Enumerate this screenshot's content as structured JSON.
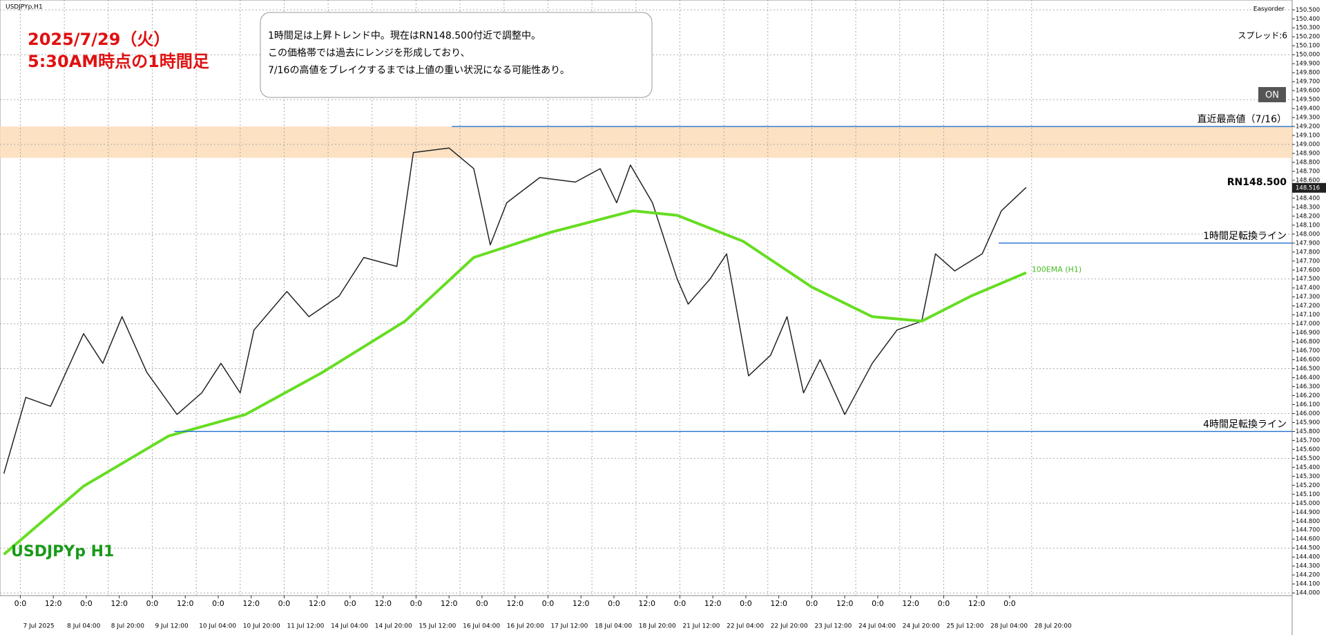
{
  "chart_data": {
    "type": "line",
    "symbol_caption": "USDJPYp,H1",
    "broker_tag": "Easyorder",
    "spread": "スプレッド:6",
    "button": "ON",
    "title_lines": [
      "2025/7/29（火）",
      "5:30AM時点の1時間足"
    ],
    "note_lines": [
      "1時間足は上昇トレンド中。現在はRN148.500付近で調整中。",
      "この価格帯では過去にレンジを形成しており、",
      "7/16の高値をブレイクするまでは上値の重い状況になる可能性あり。"
    ],
    "symbol_label": "USDJPYp H1",
    "last_price": 148.516,
    "xlim": [
      -7.4,
      462.8
    ],
    "ylim": [
      143.97,
      150.61
    ],
    "grid": true,
    "zone": [
      148.85,
      149.2
    ],
    "zone_color": "#fcdcb8",
    "levels": [
      {
        "label": "直近最高値（7/16）",
        "value": 149.2,
        "from": 157
      },
      {
        "label": "RN148.500",
        "value": 148.5,
        "from": 462.8
      },
      {
        "label": "1時間足転換ライン",
        "value": 147.9,
        "from": 356
      },
      {
        "label": "4時間足転換ライン",
        "value": 145.8,
        "from": 56
      }
    ],
    "series": [
      {
        "name": "USDJPYp",
        "color": "#222222",
        "x": [
          -6,
          2,
          11,
          23,
          30,
          37,
          46,
          57,
          66,
          73,
          80,
          85,
          97,
          105,
          116,
          125,
          137,
          143,
          156,
          165,
          171,
          177,
          189,
          202,
          211,
          217,
          222,
          230,
          239,
          243,
          251,
          257,
          265,
          273,
          279,
          285,
          291,
          300,
          310,
          319,
          328,
          333,
          340,
          350,
          357,
          366
        ],
        "values": [
          145.33,
          146.18,
          146.08,
          146.89,
          146.56,
          147.08,
          146.46,
          145.99,
          146.23,
          146.56,
          146.23,
          146.93,
          147.36,
          147.08,
          147.31,
          147.74,
          147.64,
          148.91,
          148.96,
          148.73,
          147.88,
          148.35,
          148.63,
          148.58,
          148.73,
          148.35,
          148.77,
          148.35,
          147.5,
          147.22,
          147.5,
          147.78,
          146.42,
          146.65,
          147.08,
          146.23,
          146.6,
          145.99,
          146.56,
          146.93,
          147.03,
          147.78,
          147.59,
          147.78,
          148.26,
          148.52
        ]
      },
      {
        "name": "100EMA (H1)",
        "color": "#66dd22",
        "x": [
          -6,
          23,
          54,
          82,
          110,
          140,
          165,
          193,
          223,
          239,
          263,
          288,
          310,
          328,
          346,
          366
        ],
        "values": [
          144.43,
          145.19,
          145.75,
          145.99,
          146.46,
          147.03,
          147.74,
          148.02,
          148.26,
          148.21,
          147.92,
          147.41,
          147.08,
          147.03,
          147.31,
          147.57
        ]
      }
    ],
    "yticks": [
      {
        "value": 144.0,
        "label": "144.000"
      },
      {
        "value": 144.1,
        "label": "144.100"
      },
      {
        "value": 144.2,
        "label": "144.200"
      },
      {
        "value": 144.3,
        "label": "144.300"
      },
      {
        "value": 144.4,
        "label": "144.400"
      },
      {
        "value": 144.5,
        "label": "144.500"
      },
      {
        "value": 144.6,
        "label": "144.600"
      },
      {
        "value": 144.7,
        "label": "144.700"
      },
      {
        "value": 144.8,
        "label": "144.800"
      },
      {
        "value": 144.9,
        "label": "144.900"
      },
      {
        "value": 145.0,
        "label": "145.000"
      },
      {
        "value": 145.1,
        "label": "145.100"
      },
      {
        "value": 145.2,
        "label": "145.200"
      },
      {
        "value": 145.3,
        "label": "145.300"
      },
      {
        "value": 145.4,
        "label": "145.400"
      },
      {
        "value": 145.5,
        "label": "145.500"
      },
      {
        "value": 145.6,
        "label": "145.600"
      },
      {
        "value": 145.7,
        "label": "145.700"
      },
      {
        "value": 145.8,
        "label": "145.800"
      },
      {
        "value": 145.9,
        "label": "145.900"
      },
      {
        "value": 146.0,
        "label": "146.000"
      },
      {
        "value": 146.1,
        "label": "146.100"
      },
      {
        "value": 146.2,
        "label": "146.200"
      },
      {
        "value": 146.3,
        "label": "146.300"
      },
      {
        "value": 146.4,
        "label": "146.400"
      },
      {
        "value": 146.5,
        "label": "146.500"
      },
      {
        "value": 146.6,
        "label": "146.600"
      },
      {
        "value": 146.7,
        "label": "146.700"
      },
      {
        "value": 146.8,
        "label": "146.800"
      },
      {
        "value": 146.9,
        "label": "146.900"
      },
      {
        "value": 147.0,
        "label": "147.000"
      },
      {
        "value": 147.1,
        "label": "147.100"
      },
      {
        "value": 147.2,
        "label": "147.200"
      },
      {
        "value": 147.3,
        "label": "147.300"
      },
      {
        "value": 147.4,
        "label": "147.400"
      },
      {
        "value": 147.5,
        "label": "147.500"
      },
      {
        "value": 147.6,
        "label": "147.600"
      },
      {
        "value": 147.7,
        "label": "147.700"
      },
      {
        "value": 147.8,
        "label": "147.800"
      },
      {
        "value": 147.9,
        "label": "147.900"
      },
      {
        "value": 148.0,
        "label": "148.000"
      },
      {
        "value": 148.1,
        "label": "148.100"
      },
      {
        "value": 148.2,
        "label": "148.200"
      },
      {
        "value": 148.3,
        "label": "148.300"
      },
      {
        "value": 148.4,
        "label": "148.400"
      },
      {
        "value": 148.6,
        "label": "148.600"
      },
      {
        "value": 148.7,
        "label": "148.700"
      },
      {
        "value": 148.8,
        "label": "148.800"
      },
      {
        "value": 148.9,
        "label": "148.900"
      },
      {
        "value": 149.0,
        "label": "149.000"
      },
      {
        "value": 149.1,
        "label": "149.100"
      },
      {
        "value": 149.2,
        "label": "149.200"
      },
      {
        "value": 149.3,
        "label": "149.300"
      },
      {
        "value": 149.4,
        "label": "149.400"
      },
      {
        "value": 149.5,
        "label": "149.500"
      },
      {
        "value": 149.6,
        "label": "149.600"
      },
      {
        "value": 149.7,
        "label": "149.700"
      },
      {
        "value": 149.8,
        "label": "149.800"
      },
      {
        "value": 149.9,
        "label": "149.900"
      },
      {
        "value": 150.0,
        "label": "150.000"
      },
      {
        "value": 150.1,
        "label": "150.100"
      },
      {
        "value": 150.2,
        "label": "150.200"
      },
      {
        "value": 150.3,
        "label": "150.300"
      },
      {
        "value": 150.4,
        "label": "150.400"
      },
      {
        "value": 150.5,
        "label": "150.500"
      }
    ],
    "xticks": [
      {
        "value": 0,
        "label": "0:0"
      },
      {
        "value": 12,
        "label": "12:0"
      },
      {
        "value": 24,
        "label": "0:0"
      },
      {
        "value": 36,
        "label": "12:0"
      },
      {
        "value": 48,
        "label": "0:0"
      },
      {
        "value": 60,
        "label": "12:0"
      },
      {
        "value": 72,
        "label": "0:0"
      },
      {
        "value": 84,
        "label": "12:0"
      },
      {
        "value": 96,
        "label": "0:0"
      },
      {
        "value": 108,
        "label": "12:0"
      },
      {
        "value": 120,
        "label": "0:0"
      },
      {
        "value": 132,
        "label": "12:0"
      },
      {
        "value": 144,
        "label": "0:0"
      },
      {
        "value": 156,
        "label": "12:0"
      },
      {
        "value": 168,
        "label": "0:0"
      },
      {
        "value": 180,
        "label": "12:0"
      },
      {
        "value": 192,
        "label": "0:0"
      },
      {
        "value": 204,
        "label": "12:0"
      },
      {
        "value": 216,
        "label": "0:0"
      },
      {
        "value": 228,
        "label": "12:0"
      },
      {
        "value": 240,
        "label": "0:0"
      },
      {
        "value": 252,
        "label": "12:0"
      },
      {
        "value": 264,
        "label": "0:0"
      },
      {
        "value": 276,
        "label": "12:0"
      },
      {
        "value": 288,
        "label": "0:0"
      },
      {
        "value": 300,
        "label": "12:0"
      },
      {
        "value": 312,
        "label": "0:0"
      },
      {
        "value": 324,
        "label": "12:0"
      },
      {
        "value": 336,
        "label": "0:0"
      },
      {
        "value": 348,
        "label": "12:0"
      },
      {
        "value": 360,
        "label": "0:0"
      }
    ],
    "date_ticks": [
      {
        "value": 0,
        "label": "7 Jul 2025"
      },
      {
        "value": 16,
        "label": "8 Jul 04:00"
      },
      {
        "value": 32,
        "label": "8 Jul 20:00"
      },
      {
        "value": 48,
        "label": "9 Jul 12:00"
      },
      {
        "value": 64,
        "label": "10 Jul 04:00"
      },
      {
        "value": 80,
        "label": "10 Jul 20:00"
      },
      {
        "value": 96,
        "label": "11 Jul 12:00"
      },
      {
        "value": 112,
        "label": "14 Jul 04:00"
      },
      {
        "value": 128,
        "label": "14 Jul 20:00"
      },
      {
        "value": 144,
        "label": "15 Jul 12:00"
      },
      {
        "value": 160,
        "label": "16 Jul 04:00"
      },
      {
        "value": 176,
        "label": "16 Jul 20:00"
      },
      {
        "value": 192,
        "label": "17 Jul 12:00"
      },
      {
        "value": 208,
        "label": "18 Jul 04:00"
      },
      {
        "value": 224,
        "label": "18 Jul 20:00"
      },
      {
        "value": 240,
        "label": "21 Jul 12:00"
      },
      {
        "value": 256,
        "label": "22 Jul 04:00"
      },
      {
        "value": 272,
        "label": "22 Jul 20:00"
      },
      {
        "value": 288,
        "label": "23 Jul 12:00"
      },
      {
        "value": 304,
        "label": "24 Jul 04:00"
      },
      {
        "value": 320,
        "label": "24 Jul 20:00"
      },
      {
        "value": 336,
        "label": "25 Jul 12:00"
      },
      {
        "value": 352,
        "label": "28 Jul 04:00"
      },
      {
        "value": 368,
        "label": "28 Jul 20:00"
      }
    ]
  }
}
